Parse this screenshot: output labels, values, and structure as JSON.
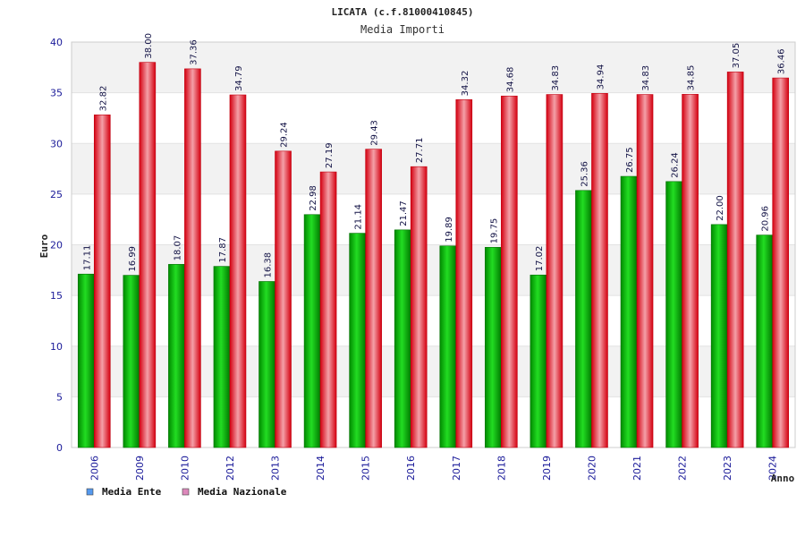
{
  "chart_data": {
    "type": "bar",
    "title": "LICATA (c.f.81000410845)",
    "subtitle": "Media Importi",
    "xlabel": "Anno",
    "ylabel": "Euro",
    "ylim": [
      0,
      40
    ],
    "yticks": [
      0,
      5,
      10,
      15,
      20,
      25,
      30,
      35,
      40
    ],
    "grid": "horizontal-bands",
    "legend_position": "bottom-left",
    "categories": [
      "2006",
      "2009",
      "2010",
      "2012",
      "2013",
      "2014",
      "2015",
      "2016",
      "2017",
      "2018",
      "2019",
      "2020",
      "2021",
      "2022",
      "2023",
      "2024"
    ],
    "series": [
      {
        "name": "Media Ente",
        "color": "#00b000",
        "legend_color": "#5599ee",
        "values": [
          17.11,
          16.99,
          18.07,
          17.87,
          16.38,
          22.98,
          21.14,
          21.47,
          19.89,
          19.75,
          17.02,
          25.36,
          26.75,
          26.24,
          22.0,
          20.96
        ],
        "labels": [
          "17.11",
          "16.99",
          "18.07",
          "17.87",
          "16.38",
          "22.98",
          "21.14",
          "21.47",
          "19.89",
          "19.75",
          "17.02",
          "25.36",
          "26.75",
          "26.24",
          "22.00",
          "20.96"
        ]
      },
      {
        "name": "Media Nazionale",
        "color": "#e8101c",
        "legend_color": "#dd88bb",
        "values": [
          32.82,
          38.0,
          37.36,
          34.79,
          29.24,
          27.19,
          29.43,
          27.71,
          34.32,
          34.68,
          34.83,
          34.94,
          34.83,
          34.85,
          37.05,
          36.46
        ],
        "labels": [
          "32.82",
          "38.00",
          "37.36",
          "34.79",
          "29.24",
          "27.19",
          "29.43",
          "27.71",
          "34.32",
          "34.68",
          "34.83",
          "34.94",
          "34.83",
          "34.85",
          "37.05",
          "36.46"
        ]
      }
    ]
  }
}
